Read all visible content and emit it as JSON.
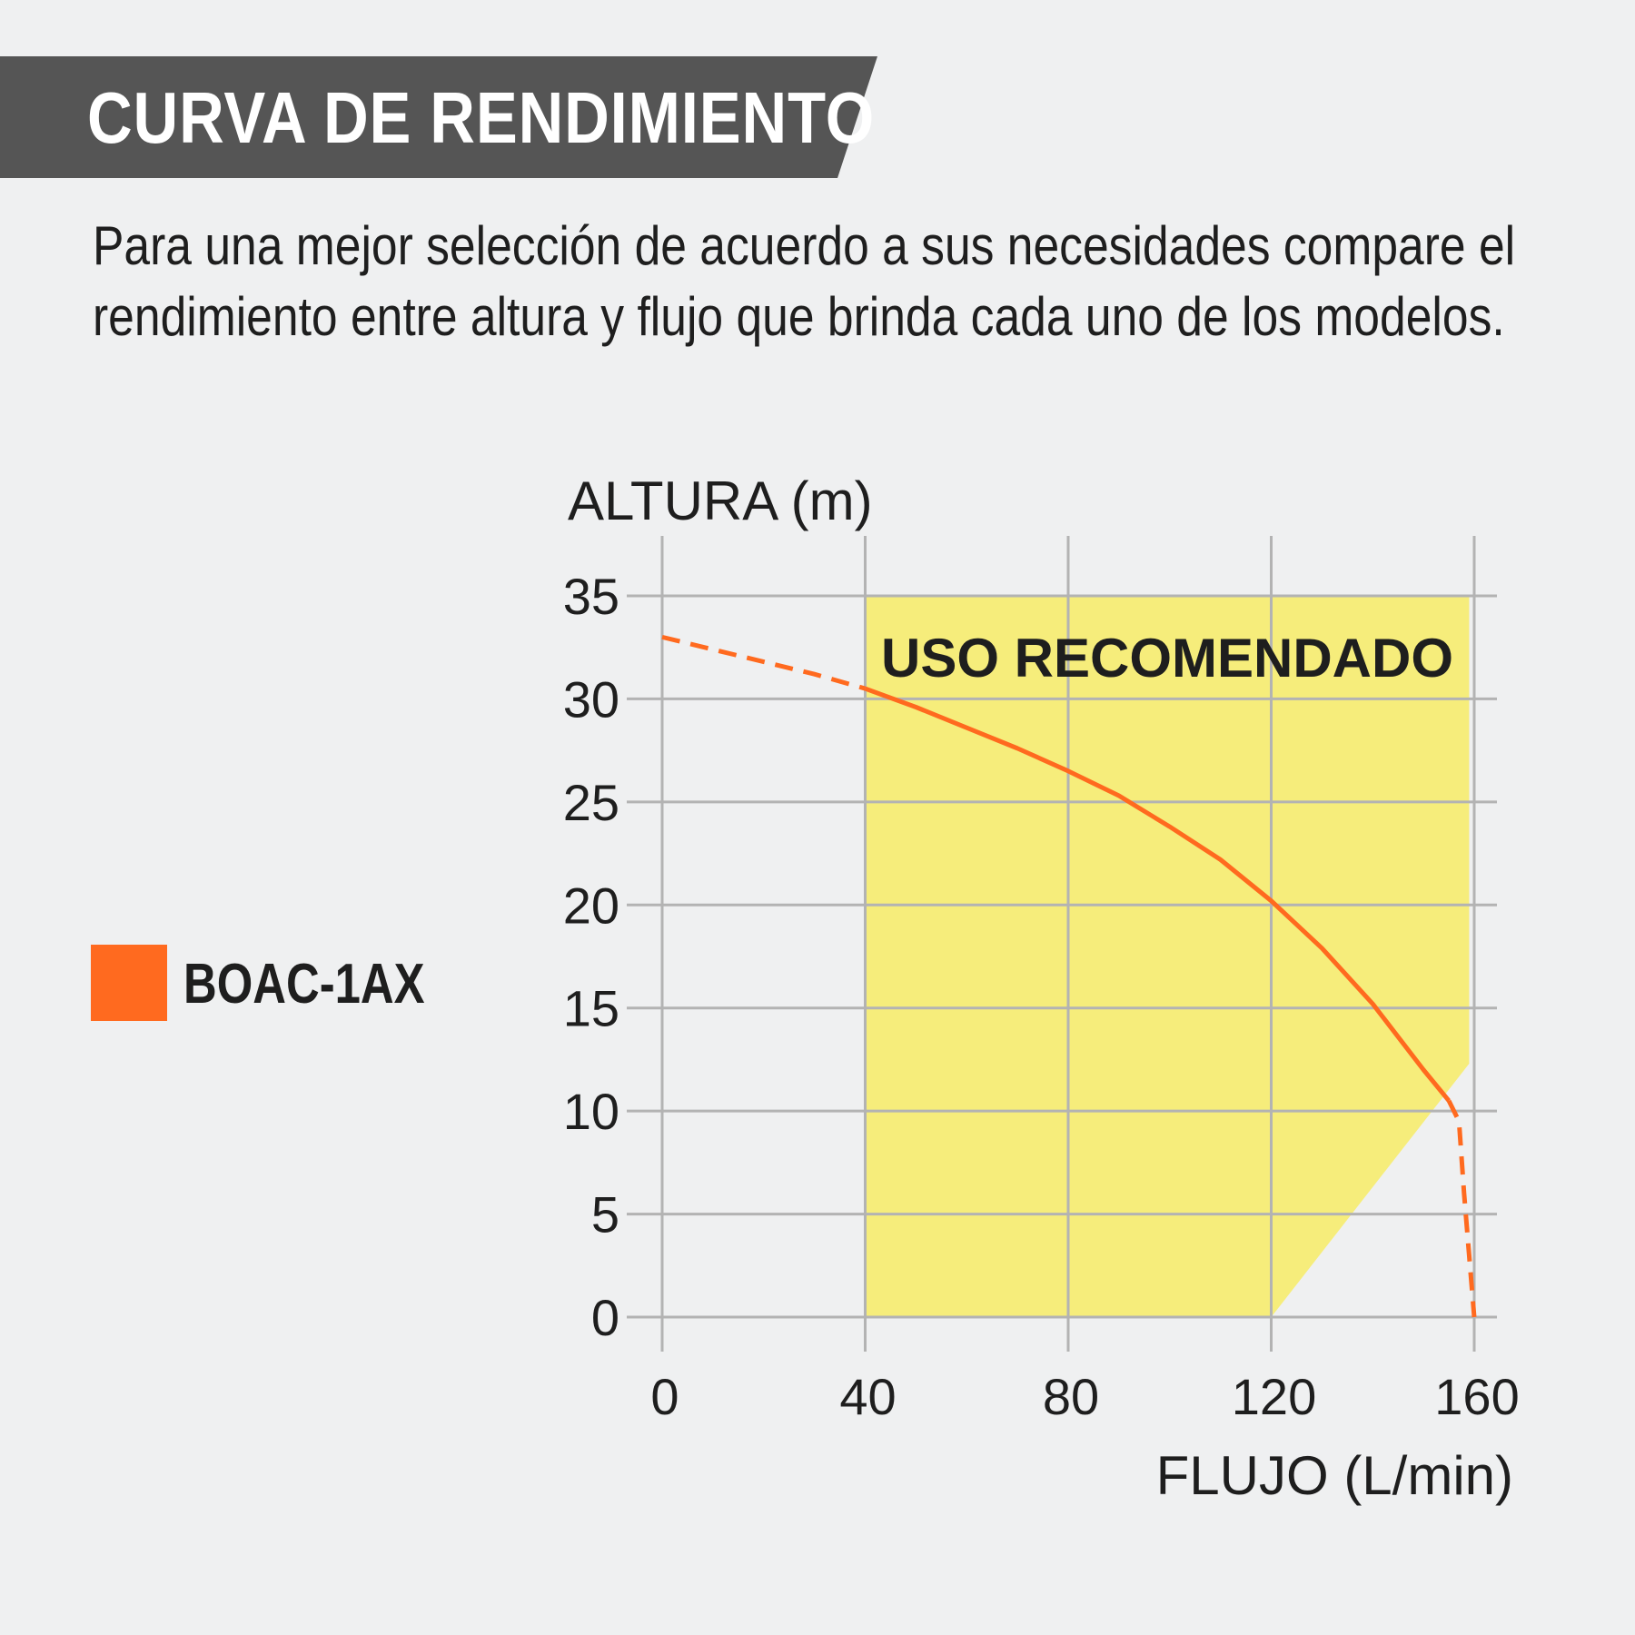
{
  "header": {
    "title": "CURVA DE RENDIMIENTO",
    "banner_color": "#555555"
  },
  "subtitle": "Para una mejor selección de acuerdo a sus necesidades compare el rendimiento entre altura y flujo que brinda cada uno de los modelos.",
  "legend": {
    "label": "BOAC-1AX",
    "color": "#ff6a1f"
  },
  "chart_data": {
    "type": "line",
    "ylabel": "ALTURA (m)",
    "xlabel": "FLUJO (L/min)",
    "xlim": [
      0,
      160
    ],
    "ylim": [
      0,
      35
    ],
    "x_ticks": [
      "0",
      "40",
      "80",
      "120",
      "160"
    ],
    "y_ticks": [
      "0",
      "5",
      "10",
      "15",
      "20",
      "25",
      "30",
      "35"
    ],
    "grid": true,
    "recommended_zone": {
      "label": "USO RECOMENDADO",
      "color": "#f6ed7b",
      "polygon": [
        [
          40,
          0
        ],
        [
          40,
          35
        ],
        [
          159,
          35
        ],
        [
          159,
          12.3
        ],
        [
          120,
          0
        ]
      ]
    },
    "series": [
      {
        "name": "BOAC-1AX",
        "color": "#ff6a1f",
        "points": [
          [
            0,
            33.0
          ],
          [
            10,
            32.4
          ],
          [
            20,
            31.8
          ],
          [
            30,
            31.2
          ],
          [
            40,
            30.5
          ],
          [
            50,
            29.6
          ],
          [
            60,
            28.6
          ],
          [
            70,
            27.6
          ],
          [
            80,
            26.5
          ],
          [
            90,
            25.3
          ],
          [
            100,
            23.8
          ],
          [
            110,
            22.2
          ],
          [
            120,
            20.2
          ],
          [
            130,
            17.9
          ],
          [
            140,
            15.2
          ],
          [
            150,
            12.0
          ],
          [
            155,
            10.5
          ],
          [
            157,
            9.5
          ],
          [
            158,
            6.0
          ],
          [
            159,
            3.0
          ],
          [
            160,
            0
          ]
        ],
        "solid_x_range": [
          40,
          155
        ]
      }
    ]
  }
}
